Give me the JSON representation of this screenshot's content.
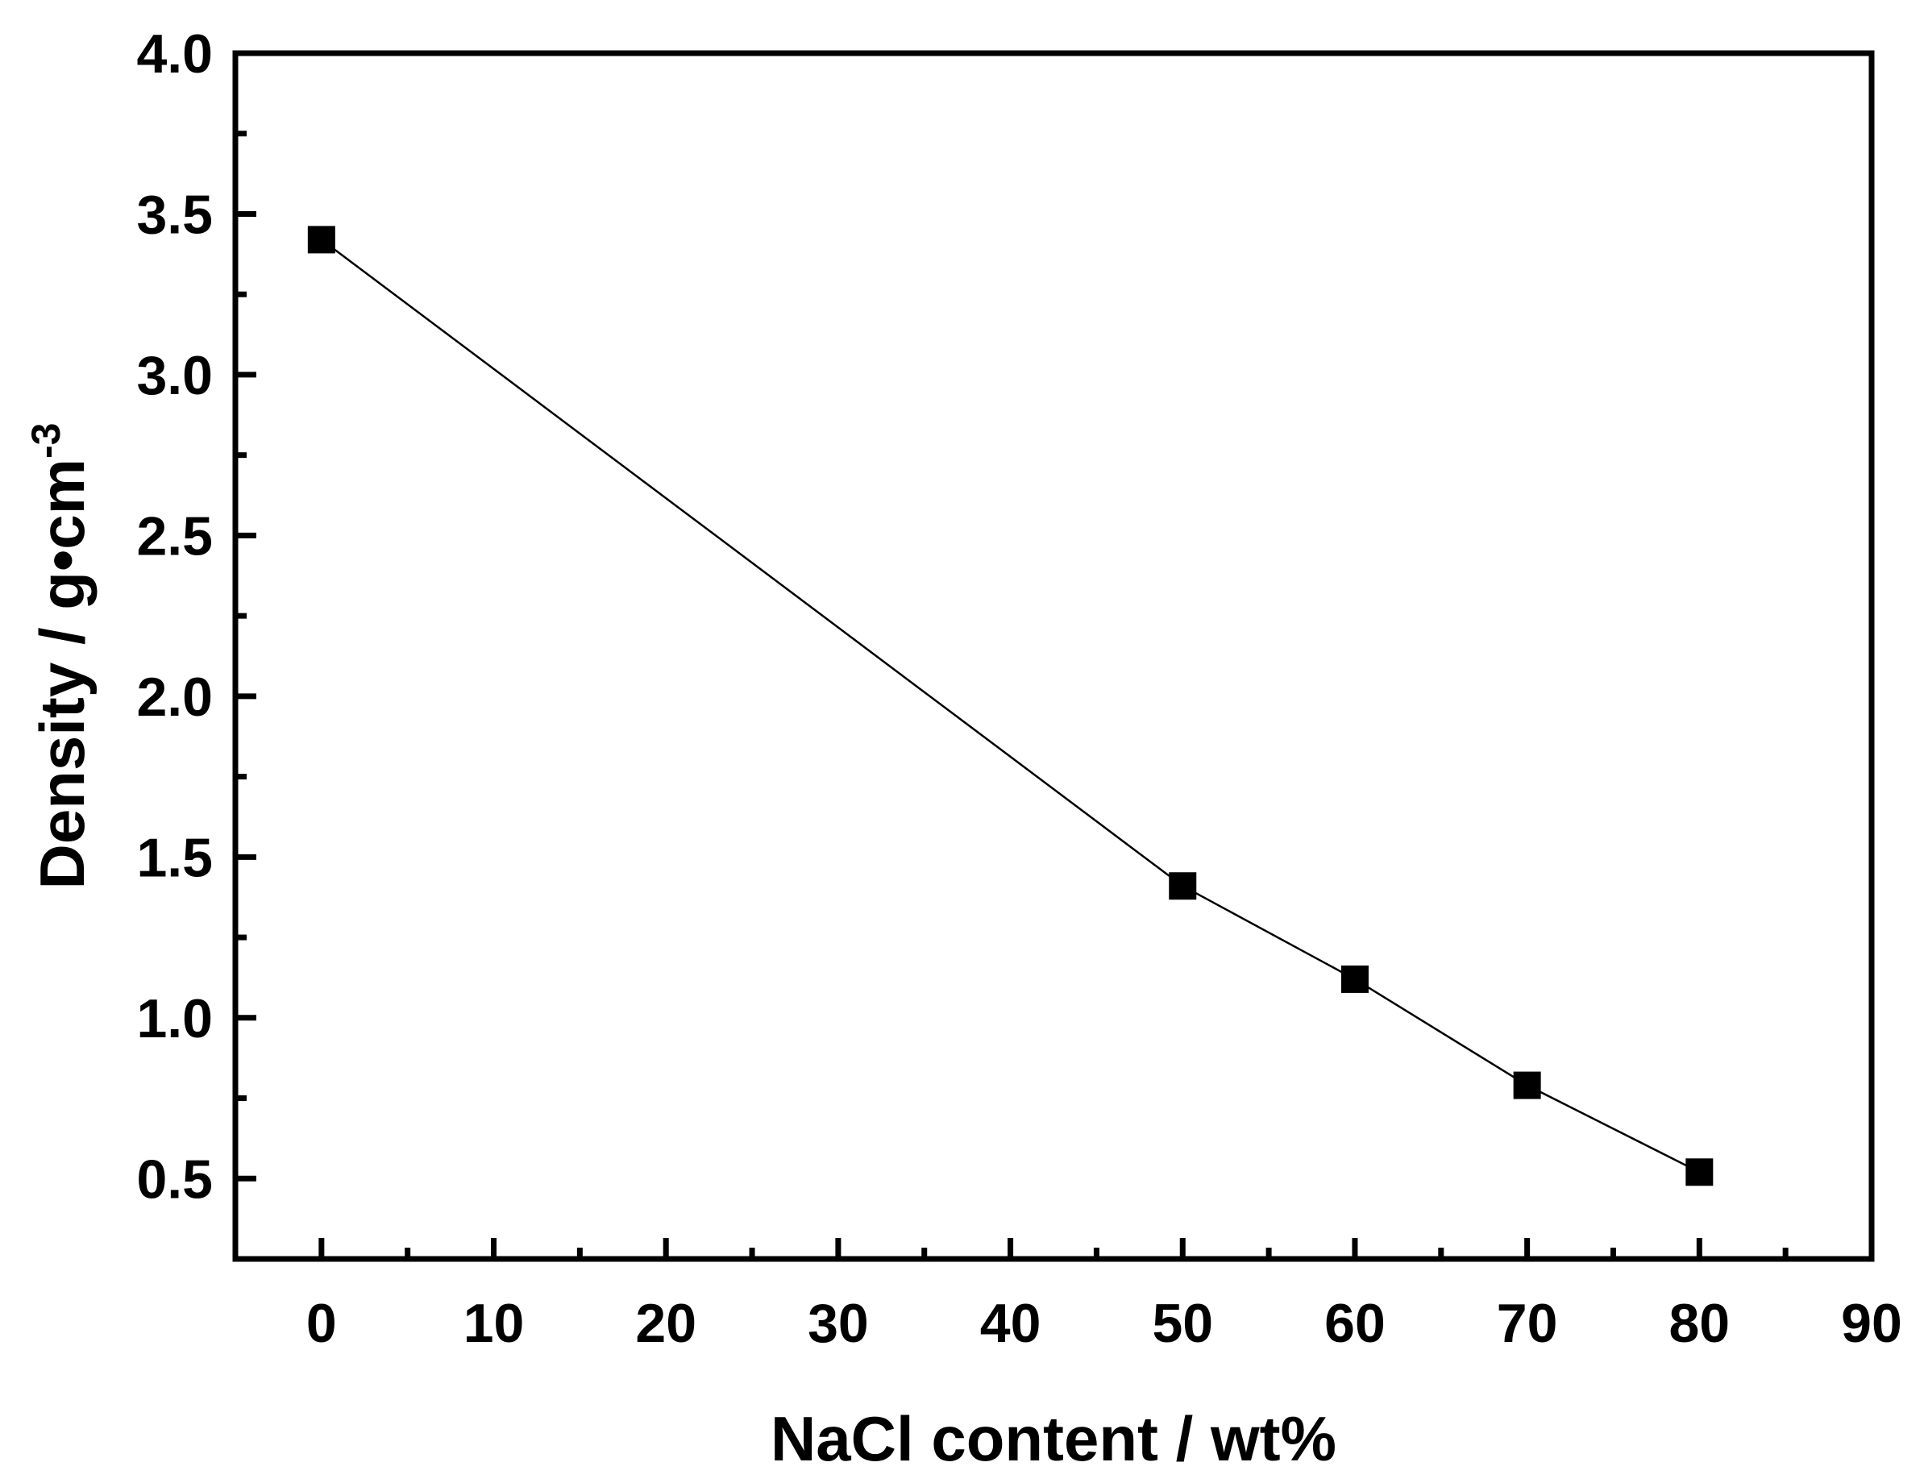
{
  "chart_data": {
    "type": "line",
    "xlabel": "NaCl content / wt%",
    "ylabel": "Density / g•cm",
    "ylabel_superscript": "-3",
    "xlim": [
      -5,
      90
    ],
    "ylim": [
      0.25,
      4.0
    ],
    "x_ticks": [
      0,
      10,
      20,
      30,
      40,
      50,
      60,
      70,
      80,
      90
    ],
    "x_tick_labels": [
      "0",
      "10",
      "20",
      "30",
      "40",
      "50",
      "60",
      "70",
      "80",
      "90"
    ],
    "y_ticks": [
      0.5,
      1.0,
      1.5,
      2.0,
      2.5,
      3.0,
      3.5,
      4.0
    ],
    "y_tick_labels": [
      "0.5",
      "1.0",
      "1.5",
      "2.0",
      "2.5",
      "3.0",
      "3.5",
      "4.0"
    ],
    "x_minor_ticks": [
      5,
      15,
      25,
      35,
      45,
      55,
      65,
      75,
      85
    ],
    "y_minor_ticks": [
      0.75,
      1.25,
      1.75,
      2.25,
      2.75,
      3.25,
      3.75
    ],
    "grid": false,
    "marker": "square",
    "color": "#000000",
    "series": [
      {
        "x": [
          0,
          50,
          60,
          70,
          80
        ],
        "y": [
          3.42,
          1.41,
          1.12,
          0.79,
          0.52
        ]
      }
    ]
  }
}
